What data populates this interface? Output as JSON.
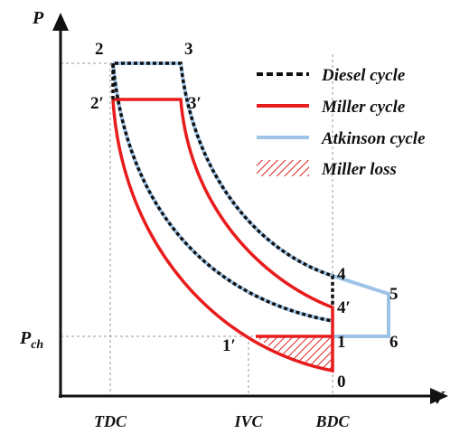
{
  "axes": {
    "y_label": "P",
    "x_label": "V",
    "p_ch": {
      "base": "P",
      "sub": "ch"
    }
  },
  "x_markers": [
    "TDC",
    "IVC",
    "BDC"
  ],
  "points": {
    "p2": "2",
    "p3": "3",
    "p2p": "2′",
    "p3p": "3′",
    "p4": "4",
    "p5": "5",
    "p4p": "4′",
    "p1": "1",
    "p6": "6",
    "p1p": "1′",
    "p0": "0"
  },
  "legend": [
    "Diesel cycle",
    "Miller cycle",
    "Atkinson cycle",
    "Miller loss"
  ]
}
